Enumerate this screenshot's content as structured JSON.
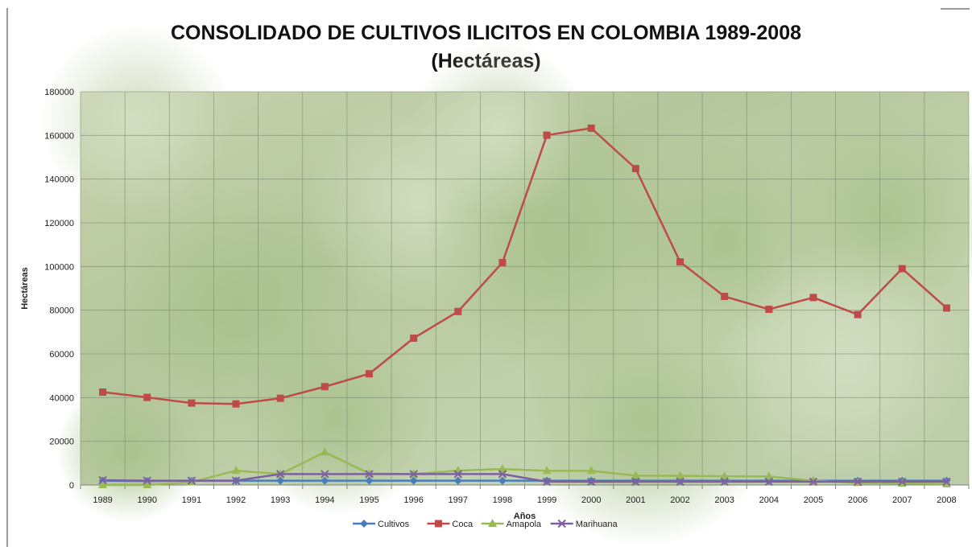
{
  "chart_data": {
    "type": "line",
    "title": "CONSOLIDADO DE CULTIVOS ILICITOS EN COLOMBIA  1989-2008",
    "subtitle": "(Hectáreas)",
    "xlabel": "Años",
    "ylabel": "Hectáreas",
    "x": [
      "1989",
      "1990",
      "1991",
      "1992",
      "1993",
      "1994",
      "1995",
      "1996",
      "1997",
      "1998",
      "1999",
      "2000",
      "2001",
      "2002",
      "2003",
      "2004",
      "2005",
      "2006",
      "2007",
      "2008"
    ],
    "ylim": [
      0,
      180000
    ],
    "yticks": [
      "0",
      "20000",
      "40000",
      "60000",
      "80000",
      "100000",
      "120000",
      "140000",
      "160000",
      "180000"
    ],
    "grid": true,
    "legend_position": "bottom",
    "series": [
      {
        "name": "Cultivos",
        "color": "#4a7ebb",
        "marker": "diamond",
        "values": [
          2000,
          1800,
          2000,
          2000,
          2000,
          2000,
          2000,
          2000,
          2000,
          2000,
          2000,
          2000,
          2000,
          2000,
          2000,
          2000,
          2000,
          2000,
          2000,
          2000
        ]
      },
      {
        "name": "Coca",
        "color": "#be4b48",
        "marker": "square",
        "values": [
          42500,
          40100,
          37500,
          37100,
          39700,
          45000,
          50900,
          67200,
          79400,
          101800,
          160100,
          163300,
          144800,
          102100,
          86300,
          80400,
          85800,
          78000,
          99000,
          81000
        ]
      },
      {
        "name": "Amapola",
        "color": "#98b954",
        "marker": "triangle",
        "values": [
          0,
          0,
          1300,
          6600,
          5000,
          15000,
          5200,
          5000,
          6600,
          7300,
          6500,
          6500,
          4300,
          4200,
          4000,
          3900,
          2000,
          1000,
          700,
          400
        ]
      },
      {
        "name": "Marihuana",
        "color": "#7d60a0",
        "marker": "x",
        "values": [
          2200,
          2000,
          2000,
          2000,
          5000,
          5000,
          5000,
          5000,
          5000,
          5000,
          1500,
          1500,
          1500,
          1500,
          1500,
          1500,
          1500,
          1500,
          1500,
          1500
        ]
      }
    ]
  }
}
